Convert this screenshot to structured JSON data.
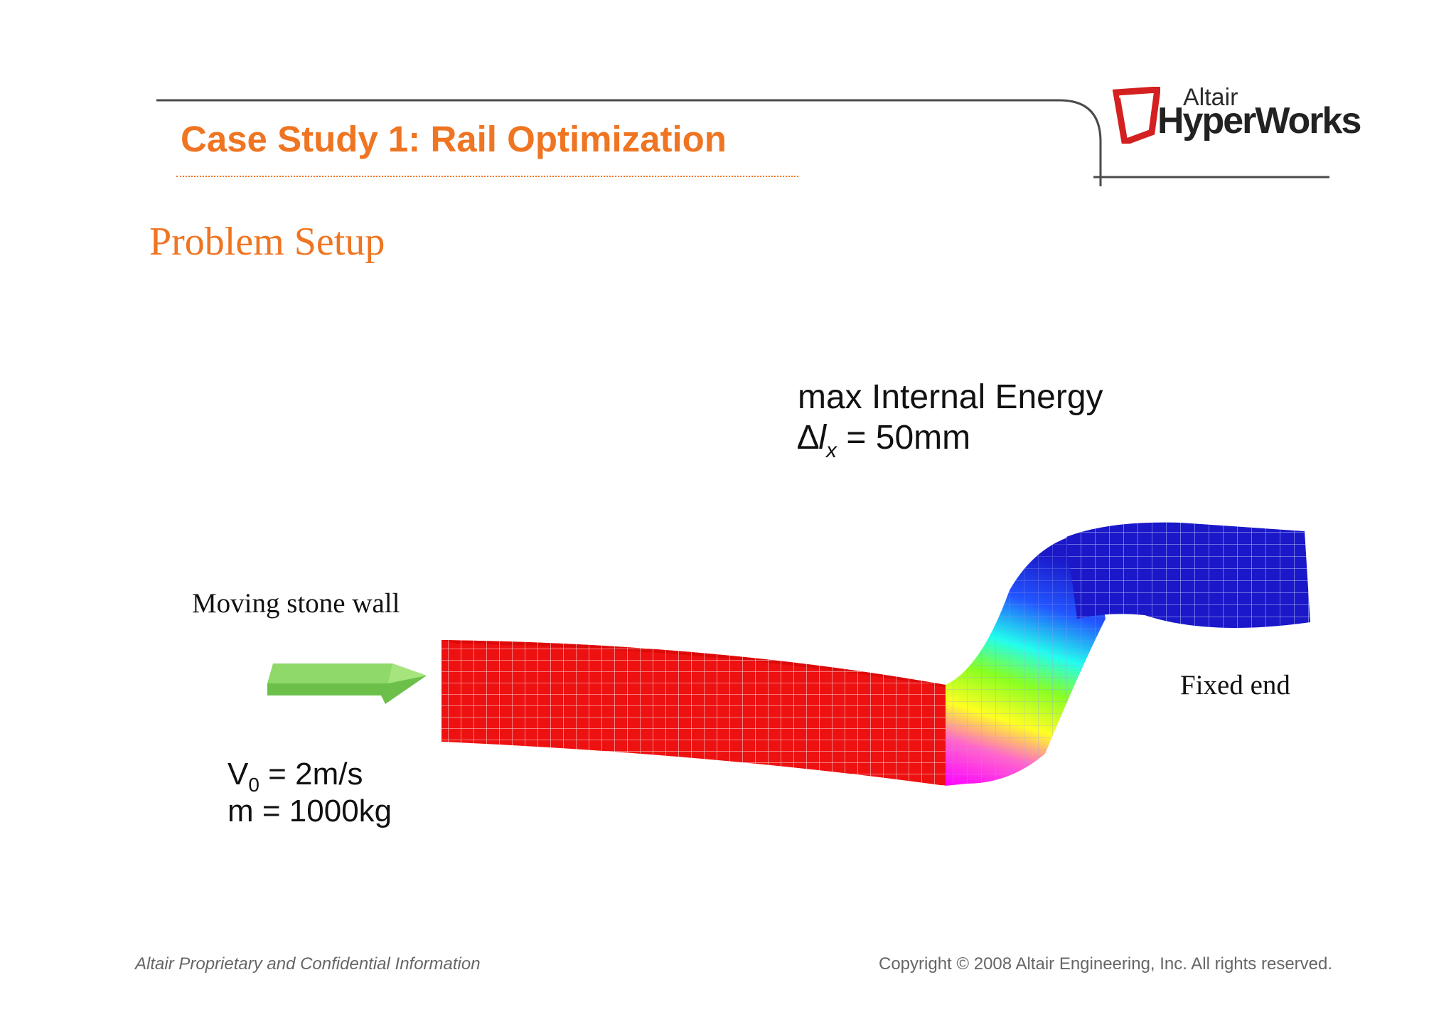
{
  "header": {
    "title": "Case Study 1: Rail Optimization",
    "logo": {
      "line1": "Altair",
      "line2": "HyperWorks",
      "mark_icon": "altair-logo-icon"
    }
  },
  "section": {
    "title": "Problem Setup"
  },
  "figure": {
    "objective": "max Internal Energy",
    "constraint": {
      "symbol": "∆",
      "var": "l",
      "subscript": "x",
      "value": "= 50mm"
    },
    "moving_wall_label": "Moving stone wall",
    "fixed_end_label": "Fixed end",
    "velocity": {
      "symbol": "V",
      "subscript": "0",
      "value": "= 2m/s"
    },
    "mass": "m = 1000kg",
    "arrow_icon": "green-arrow-icon"
  },
  "footer": {
    "left": "Altair Proprietary and Confidential Information",
    "right": "Copyright © 2008 Altair Engineering, Inc. All rights reserved."
  },
  "colors": {
    "accent": "#ef7522",
    "rail_red": "#ee1111",
    "rail_blue": "#1a18c8",
    "arrow_green": "#66bb44",
    "logo_red": "#d42020"
  }
}
